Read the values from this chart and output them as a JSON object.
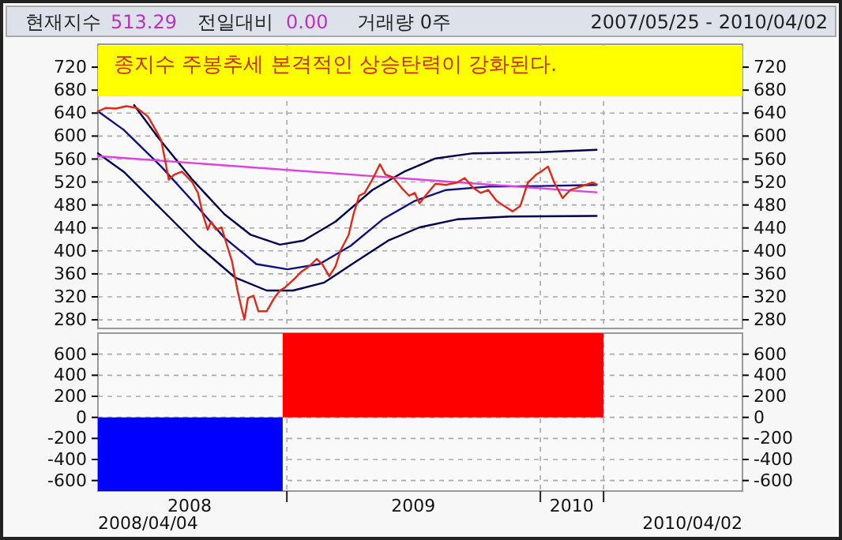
{
  "chart_data": [
    {
      "type": "line",
      "title": "종지수 주봉추세 본격적인 상승탄력이 강화된다.",
      "annotations": [
        "현재지수",
        "513.29",
        "전일대비",
        "0.00",
        "거래량 0주",
        "2007/05/25 - 2010/04/02"
      ],
      "xlim": [
        "2008-04-04",
        "2010-10-19"
      ],
      "xticks": [
        {
          "value": "2009-01-01",
          "label": null
        },
        {
          "value": "2010-01-01",
          "label": null
        },
        {
          "value": "2010-04-02",
          "label": null
        }
      ],
      "ylim": [
        265,
        760
      ],
      "yticks": [
        280,
        320,
        360,
        400,
        440,
        480,
        520,
        560,
        600,
        640,
        680,
        720
      ],
      "y2lim": [
        265,
        760
      ],
      "y2ticks": [
        280,
        320,
        360,
        400,
        440,
        480,
        520,
        560,
        600,
        640,
        680,
        720
      ],
      "tick_labels": "y",
      "grid": true,
      "marker": "none",
      "line_style": "solid",
      "series": [
        {
          "color": "#000050",
          "x": [
            "2008-05-26",
            "2008-06-30",
            "2008-08-18",
            "2008-10-03",
            "2008-11-10",
            "2008-12-22",
            "2009-01-25",
            "2009-03-12",
            "2009-05-04",
            "2009-06-19",
            "2009-08-03",
            "2009-09-26",
            "2010-01-02",
            "2010-03-23"
          ],
          "values": [
            654,
            597,
            524,
            464,
            428,
            411,
            418,
            451,
            506,
            538,
            561,
            570,
            572,
            576
          ]
        },
        {
          "color": "#101080",
          "x": [
            "2008-04-04",
            "2008-05-11",
            "2008-07-04",
            "2008-08-18",
            "2008-10-03",
            "2008-11-18",
            "2009-01-02",
            "2009-02-17",
            "2009-04-03",
            "2009-05-19",
            "2009-07-04",
            "2009-08-18",
            "2009-10-18",
            "2010-01-02",
            "2010-03-23"
          ],
          "values": [
            643,
            611,
            547,
            487,
            423,
            377,
            368,
            377,
            409,
            455,
            487,
            506,
            512,
            513,
            515
          ]
        },
        {
          "color": "#000050",
          "x": [
            "2008-04-04",
            "2008-05-11",
            "2008-07-04",
            "2008-08-26",
            "2008-10-18",
            "2008-12-03",
            "2009-01-10",
            "2009-02-24",
            "2009-04-11",
            "2009-05-27",
            "2009-07-11",
            "2009-09-03",
            "2009-11-18",
            "2010-03-23"
          ],
          "values": [
            570,
            538,
            473,
            409,
            354,
            331,
            331,
            345,
            382,
            418,
            441,
            455,
            460,
            461
          ]
        },
        {
          "color": "#e040e0",
          "x": [
            "2008-04-04",
            "2010-03-23"
          ],
          "values": [
            565,
            502
          ]
        },
        {
          "color": "#e02818",
          "x": [
            "2008-04-04",
            "2008-04-15",
            "2008-04-30",
            "2008-05-15",
            "2008-05-30",
            "2008-06-15",
            "2008-06-26",
            "2008-07-04",
            "2008-07-10",
            "2008-07-15",
            "2008-07-23",
            "2008-08-03",
            "2008-08-11",
            "2008-08-18",
            "2008-08-26",
            "2008-09-02",
            "2008-09-09",
            "2008-09-14",
            "2008-09-21",
            "2008-09-29",
            "2008-10-07",
            "2008-10-14",
            "2008-10-22",
            "2008-10-28",
            "2008-11-01",
            "2008-11-06",
            "2008-11-14",
            "2008-11-21",
            "2008-12-03",
            "2008-12-14",
            "2008-12-22",
            "2008-12-29",
            "2009-01-06",
            "2009-01-14",
            "2009-01-21",
            "2009-02-02",
            "2009-02-13",
            "2009-02-21",
            "2009-03-03",
            "2009-03-12",
            "2009-03-19",
            "2009-03-31",
            "2009-04-07",
            "2009-04-15",
            "2009-04-23",
            "2009-05-04",
            "2009-05-15",
            "2009-05-23",
            "2009-06-03",
            "2009-06-15",
            "2009-06-26",
            "2009-07-04",
            "2009-07-11",
            "2009-07-23",
            "2009-08-03",
            "2009-08-18",
            "2009-09-03",
            "2009-09-14",
            "2009-09-26",
            "2009-10-07",
            "2009-10-18",
            "2009-10-30",
            "2009-11-10",
            "2009-11-22",
            "2009-12-03",
            "2009-12-14",
            "2009-12-26",
            "2010-01-02",
            "2010-01-12",
            "2010-01-21",
            "2010-02-02",
            "2010-02-13",
            "2010-02-28",
            "2010-03-16",
            "2010-03-23"
          ],
          "values": [
            643,
            649,
            648,
            652,
            649,
            634,
            611,
            593,
            556,
            524,
            533,
            538,
            528,
            519,
            501,
            464,
            437,
            451,
            437,
            441,
            409,
            382,
            331,
            299,
            281,
            318,
            322,
            295,
            295,
            318,
            331,
            336,
            345,
            354,
            363,
            373,
            386,
            377,
            356,
            373,
            400,
            428,
            464,
            496,
            501,
            524,
            551,
            533,
            528,
            510,
            496,
            501,
            483,
            501,
            517,
            515,
            519,
            527,
            510,
            501,
            506,
            487,
            478,
            469,
            478,
            519,
            533,
            538,
            547,
            519,
            492,
            506,
            512,
            519,
            516
          ]
        }
      ]
    },
    {
      "type": "bar",
      "annotations": [
        "2008/04/04",
        "2010/04/02"
      ],
      "x": [
        "2008-08-15",
        "2009-08-14"
      ],
      "values": [
        -700,
        800
      ],
      "colors": [
        "#0000ff",
        "#ff0000"
      ],
      "xlim": [
        "2008-04-04",
        "2010-10-19"
      ],
      "xticks": [
        {
          "value": "2008-08-14",
          "label": "2008"
        },
        {
          "value": "2009-01-01",
          "label": null
        },
        {
          "value": "2009-07-02",
          "label": "2009"
        },
        {
          "value": "2010-01-01",
          "label": null
        },
        {
          "value": "2010-02-15",
          "label": "2010"
        },
        {
          "value": "2010-04-02",
          "label": null
        }
      ],
      "ylim": [
        -700,
        800
      ],
      "yticks": [
        -600,
        -400,
        -200,
        0,
        200,
        400,
        600
      ],
      "y2lim": [
        -700,
        800
      ],
      "y2ticks": [
        -600,
        -400,
        -200,
        0,
        200,
        400,
        600
      ],
      "grid": true
    }
  ]
}
